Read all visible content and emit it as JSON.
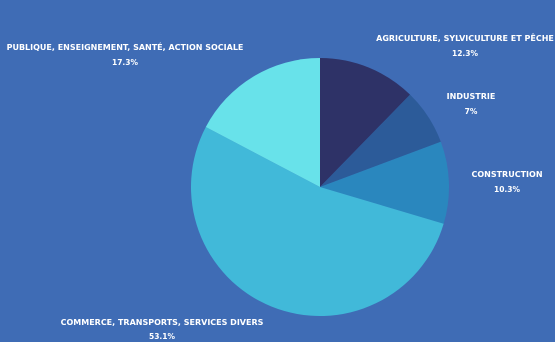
{
  "chart_data": {
    "type": "pie",
    "title": "",
    "slices": [
      {
        "label": "AGRICULTURE, SYLVICULTURE ET PÊCHE",
        "value": 12.3,
        "display": "12.3%",
        "color": "#2e3267"
      },
      {
        "label": "INDUSTRIE",
        "value": 7,
        "display": "7%",
        "color": "#2c5b99"
      },
      {
        "label": "CONSTRUCTION",
        "value": 10.3,
        "display": "10.3%",
        "color": "#2a87be"
      },
      {
        "label": "COMMERCE, TRANSPORTS, SERVICES DIVERS",
        "value": 53.1,
        "display": "53.1%",
        "color": "#41b9d9"
      },
      {
        "label": "PUBLIQUE, ENSEIGNEMENT, SANTÉ, ACTION SOCIALE",
        "value": 17.3,
        "display": "17.3%",
        "color": "#68e2ea"
      }
    ],
    "legend": "none"
  }
}
